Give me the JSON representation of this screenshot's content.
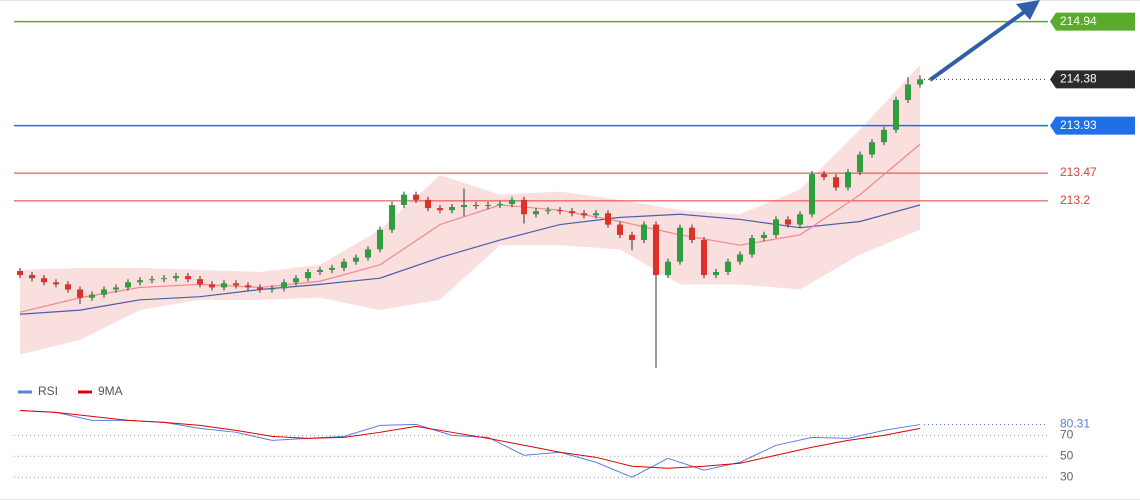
{
  "chart_data": {
    "type": "candlestick",
    "ylim": [
      211.51,
      215.15
    ],
    "up_color": "#2e9e3e",
    "down_color": "#e0302a",
    "candles": [
      [
        212.52,
        212.55,
        212.45,
        212.48
      ],
      [
        212.48,
        212.51,
        212.42,
        212.45
      ],
      [
        212.45,
        212.48,
        212.38,
        212.41
      ],
      [
        212.41,
        212.44,
        212.36,
        212.39
      ],
      [
        212.39,
        212.42,
        212.31,
        212.34
      ],
      [
        212.34,
        212.37,
        212.2,
        212.26
      ],
      [
        212.26,
        212.32,
        212.23,
        212.29
      ],
      [
        212.29,
        212.37,
        212.26,
        212.34
      ],
      [
        212.34,
        212.39,
        212.31,
        212.36
      ],
      [
        212.36,
        212.44,
        212.33,
        212.41
      ],
      [
        212.41,
        212.46,
        212.38,
        212.43
      ],
      [
        212.43,
        212.47,
        212.4,
        212.44
      ],
      [
        212.44,
        212.48,
        212.41,
        212.45
      ],
      [
        212.45,
        212.5,
        212.42,
        212.47
      ],
      [
        212.47,
        212.5,
        212.41,
        212.44
      ],
      [
        212.44,
        212.47,
        212.36,
        212.39
      ],
      [
        212.39,
        212.42,
        212.33,
        212.36
      ],
      [
        212.36,
        212.43,
        212.33,
        212.4
      ],
      [
        212.4,
        212.43,
        212.35,
        212.38
      ],
      [
        212.38,
        212.41,
        212.33,
        212.36
      ],
      [
        212.36,
        212.39,
        212.31,
        212.34
      ],
      [
        212.34,
        212.38,
        212.31,
        212.35
      ],
      [
        212.35,
        212.44,
        212.32,
        212.41
      ],
      [
        212.41,
        212.48,
        212.38,
        212.45
      ],
      [
        212.45,
        212.54,
        212.42,
        212.51
      ],
      [
        212.51,
        212.56,
        212.48,
        212.53
      ],
      [
        212.53,
        212.58,
        212.5,
        212.55
      ],
      [
        212.55,
        212.64,
        212.52,
        212.61
      ],
      [
        212.61,
        212.68,
        212.58,
        212.65
      ],
      [
        212.65,
        212.76,
        212.62,
        212.73
      ],
      [
        212.73,
        212.95,
        212.7,
        212.92
      ],
      [
        212.92,
        213.19,
        212.89,
        213.16
      ],
      [
        213.16,
        213.29,
        213.13,
        213.26
      ],
      [
        213.26,
        213.29,
        213.18,
        213.21
      ],
      [
        213.21,
        213.24,
        213.1,
        213.13
      ],
      [
        213.13,
        213.16,
        213.08,
        213.11
      ],
      [
        213.11,
        213.17,
        213.08,
        213.14
      ],
      [
        213.14,
        213.32,
        213.05,
        213.16
      ],
      [
        213.16,
        213.19,
        213.12,
        213.15
      ],
      [
        213.15,
        213.19,
        213.12,
        213.16
      ],
      [
        213.16,
        213.2,
        213.13,
        213.17
      ],
      [
        213.17,
        213.24,
        213.14,
        213.21
      ],
      [
        213.21,
        213.24,
        212.98,
        213.07
      ],
      [
        213.07,
        213.13,
        213.04,
        213.1
      ],
      [
        213.1,
        213.14,
        213.07,
        213.11
      ],
      [
        213.11,
        213.14,
        213.07,
        213.1
      ],
      [
        213.1,
        213.13,
        213.05,
        213.08
      ],
      [
        213.08,
        213.11,
        213.03,
        213.06
      ],
      [
        213.06,
        213.11,
        213.03,
        213.08
      ],
      [
        213.08,
        213.11,
        212.94,
        212.97
      ],
      [
        212.97,
        213.0,
        212.84,
        212.87
      ],
      [
        212.87,
        212.9,
        212.72,
        212.82
      ],
      [
        212.82,
        213.0,
        212.79,
        212.97
      ],
      [
        212.97,
        213.0,
        211.58,
        212.48
      ],
      [
        212.48,
        212.64,
        212.45,
        212.61
      ],
      [
        212.61,
        212.97,
        212.58,
        212.94
      ],
      [
        212.94,
        212.97,
        212.79,
        212.82
      ],
      [
        212.82,
        212.85,
        212.45,
        212.48
      ],
      [
        212.48,
        212.54,
        212.45,
        212.51
      ],
      [
        212.51,
        212.64,
        212.48,
        212.61
      ],
      [
        212.61,
        212.71,
        212.58,
        212.68
      ],
      [
        212.68,
        212.87,
        212.65,
        212.84
      ],
      [
        212.84,
        212.9,
        212.81,
        212.87
      ],
      [
        212.87,
        213.05,
        212.84,
        213.02
      ],
      [
        213.02,
        213.05,
        212.94,
        212.97
      ],
      [
        212.97,
        213.1,
        212.94,
        213.07
      ],
      [
        213.07,
        213.49,
        213.04,
        213.46
      ],
      [
        213.46,
        213.49,
        213.4,
        213.43
      ],
      [
        213.43,
        213.46,
        213.3,
        213.33
      ],
      [
        213.33,
        213.51,
        213.3,
        213.48
      ],
      [
        213.48,
        213.68,
        213.45,
        213.65
      ],
      [
        213.65,
        213.8,
        213.62,
        213.77
      ],
      [
        213.77,
        213.92,
        213.74,
        213.89
      ],
      [
        213.89,
        214.21,
        213.86,
        214.18
      ],
      [
        214.18,
        214.4,
        214.15,
        214.33
      ],
      [
        214.33,
        214.42,
        214.3,
        214.38
      ]
    ],
    "band": {
      "color": "#f7c9c9",
      "upper": [
        212.53,
        212.55,
        212.55,
        212.53,
        212.51,
        212.58,
        212.92,
        213.45,
        213.26,
        213.29,
        213.21,
        213.11,
        213.07,
        213.31,
        213.89,
        214.52
      ],
      "lower": [
        211.71,
        211.85,
        212.14,
        212.24,
        212.24,
        212.26,
        212.14,
        212.24,
        212.77,
        212.77,
        212.73,
        212.39,
        212.39,
        212.34,
        212.68,
        212.92
      ]
    },
    "overlays": [
      {
        "color": "#4a5fa8",
        "values": [
          212.1,
          212.14,
          212.24,
          212.27,
          212.34,
          212.39,
          212.45,
          212.65,
          212.82,
          212.97,
          213.04,
          213.07,
          213.02,
          212.94,
          213.0,
          213.16
        ]
      },
      {
        "color": "#f08a8a",
        "values": [
          212.12,
          212.26,
          212.36,
          212.39,
          212.36,
          212.42,
          212.58,
          212.97,
          213.16,
          213.11,
          213.0,
          212.87,
          212.77,
          212.87,
          213.26,
          213.75
        ]
      }
    ],
    "levels": [
      {
        "value": 214.94,
        "color": "#5aab2b",
        "tag": true
      },
      {
        "value": 213.93,
        "color": "#1f6fe5",
        "tag": true
      },
      {
        "value": 213.47,
        "color": "#e33b3b",
        "tag": false
      },
      {
        "value": 213.2,
        "color": "#e33b3b",
        "tag": false
      }
    ],
    "last_price_color": "#2b2b2b",
    "rsi": {
      "ylim": [
        13,
        99
      ],
      "yticks": [
        30,
        50,
        70
      ],
      "series": [
        {
          "name": "RSI",
          "color": "#5b7fdb",
          "values": [
            93.8,
            91.9,
            84.3,
            84.3,
            82.4,
            76.7,
            72.9,
            65.2,
            67.1,
            69.0,
            79.5,
            80.5,
            70.0,
            68.1,
            51.0,
            53.8,
            44.3,
            30.0,
            48.1,
            36.7,
            44.3,
            60.5,
            68.1,
            67.1,
            74.8,
            80.31
          ]
        },
        {
          "name": "9MA",
          "color": "#e00000",
          "values": [
            93.8,
            91.9,
            88.1,
            84.3,
            82.4,
            79.5,
            74.8,
            69.0,
            67.1,
            68.1,
            72.9,
            78.6,
            72.9,
            67.1,
            60.5,
            53.8,
            49.0,
            40.5,
            38.6,
            40.5,
            43.3,
            51.0,
            58.6,
            65.2,
            70.0,
            76.7
          ]
        }
      ]
    }
  }
}
